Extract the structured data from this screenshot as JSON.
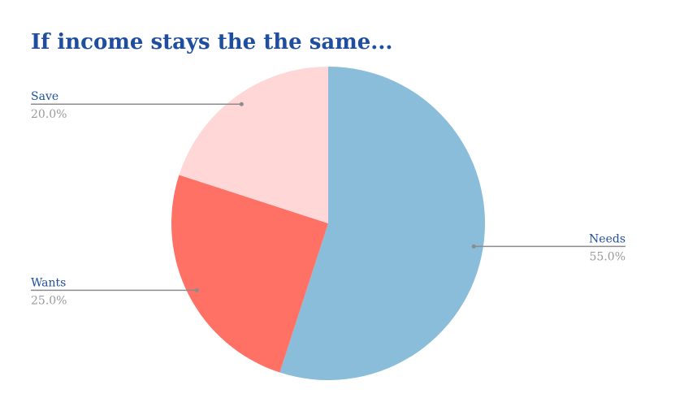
{
  "chart_data": {
    "type": "pie",
    "title": "If income stays the the same...",
    "slices": [
      {
        "label": "Needs",
        "value": 55.0,
        "value_label": "55.0%",
        "color": "#89bdd9"
      },
      {
        "label": "Wants",
        "value": 25.0,
        "value_label": "25.0%",
        "color": "#ff7164"
      },
      {
        "label": "Save",
        "value": 20.0,
        "value_label": "20.0%",
        "color": "#ffd7d7"
      }
    ],
    "start_angle_deg": 0,
    "direction": "clockwise",
    "legend": "none",
    "data_labels": "outside-with-leader-lines"
  }
}
